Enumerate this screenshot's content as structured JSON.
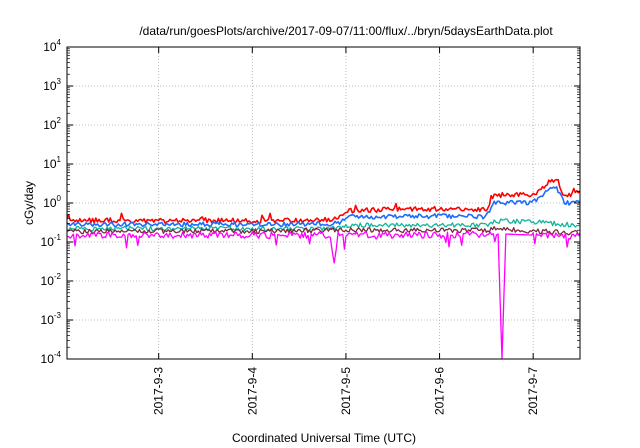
{
  "chart_data": {
    "type": "line",
    "title": "/data/run/goesPlots/archive/2017-09-07/11:00/flux/../bryn/5daysEarthData.plot",
    "xlabel": "Coordinated Universal Time (UTC)",
    "ylabel": "cGy/day",
    "y_scale": "log",
    "ylim": [
      0.0001,
      10000
    ],
    "xlim": [
      "2017-09-02 00:30",
      "2017-09-07 12:00"
    ],
    "x_ticks": [
      "2017-9-3",
      "2017-9-4",
      "2017-9-5",
      "2017-9-6",
      "2017-9-7"
    ],
    "x_tick_dates": [
      "2017-09-03",
      "2017-09-04",
      "2017-09-05",
      "2017-09-06",
      "2017-09-07"
    ],
    "y_ticks": [
      {
        "base": "10",
        "exp": "-4",
        "value": 0.0001
      },
      {
        "base": "10",
        "exp": "-3",
        "value": 0.001
      },
      {
        "base": "10",
        "exp": "-2",
        "value": 0.01
      },
      {
        "base": "10",
        "exp": "-1",
        "value": 0.1
      },
      {
        "base": "10",
        "exp": "0",
        "value": 1
      },
      {
        "base": "10",
        "exp": "1",
        "value": 10
      },
      {
        "base": "10",
        "exp": "2",
        "value": 100
      },
      {
        "base": "10",
        "exp": "3",
        "value": 1000
      },
      {
        "base": "10",
        "exp": "4",
        "value": 10000
      }
    ],
    "grid": true,
    "series": [
      {
        "color": "#ff0000",
        "x": [
          "2017-09-02 00:30",
          "2017-09-02 12:00",
          "2017-09-03 00:00",
          "2017-09-03 12:00",
          "2017-09-04 00:00",
          "2017-09-04 12:00",
          "2017-09-04 22:00",
          "2017-09-05 00:00",
          "2017-09-05 12:00",
          "2017-09-06 00:00",
          "2017-09-06 12:00",
          "2017-09-06 14:00",
          "2017-09-07 00:00",
          "2017-09-07 04:00",
          "2017-09-07 06:00",
          "2017-09-07 08:00",
          "2017-09-07 12:00"
        ],
        "values": [
          0.35,
          0.36,
          0.35,
          0.36,
          0.35,
          0.36,
          0.38,
          0.62,
          0.7,
          0.7,
          0.68,
          1.6,
          1.6,
          3.5,
          3.8,
          1.5,
          2.0
        ]
      },
      {
        "color": "#1e6cff",
        "x": [
          "2017-09-02 00:30",
          "2017-09-03 00:00",
          "2017-09-04 00:00",
          "2017-09-04 22:00",
          "2017-09-05 00:00",
          "2017-09-06 00:00",
          "2017-09-06 12:00",
          "2017-09-06 14:00",
          "2017-09-07 00:00",
          "2017-09-07 04:00",
          "2017-09-07 06:00",
          "2017-09-07 08:00",
          "2017-09-07 12:00"
        ],
        "values": [
          0.28,
          0.28,
          0.28,
          0.3,
          0.45,
          0.46,
          0.45,
          1.0,
          1.05,
          2.2,
          2.4,
          1.0,
          1.0
        ]
      },
      {
        "color": "#10b59a",
        "x": [
          "2017-09-02 00:30",
          "2017-09-03 00:00",
          "2017-09-04 00:00",
          "2017-09-04 22:00",
          "2017-09-05 00:00",
          "2017-09-06 00:00",
          "2017-09-06 12:00",
          "2017-09-06 14:00",
          "2017-09-07 00:00",
          "2017-09-07 12:00"
        ],
        "values": [
          0.22,
          0.22,
          0.22,
          0.22,
          0.27,
          0.27,
          0.27,
          0.35,
          0.33,
          0.26
        ]
      },
      {
        "color": "#7a2a3a",
        "x": [
          "2017-09-02 00:30",
          "2017-09-03 00:00",
          "2017-09-04 00:00",
          "2017-09-05 00:00",
          "2017-09-06 00:00",
          "2017-09-06 12:00",
          "2017-09-06 14:00",
          "2017-09-07 00:00",
          "2017-09-07 12:00"
        ],
        "values": [
          0.19,
          0.19,
          0.19,
          0.2,
          0.2,
          0.2,
          0.22,
          0.19,
          0.17
        ]
      },
      {
        "color": "#ff00ff",
        "x": [
          "2017-09-02 00:30",
          "2017-09-03 00:00",
          "2017-09-04 00:00",
          "2017-09-04 20:00",
          "2017-09-04 21:00",
          "2017-09-04 22:00",
          "2017-09-05 00:00",
          "2017-09-06 00:00",
          "2017-09-06 15:00",
          "2017-09-06 16:00",
          "2017-09-06 17:00",
          "2017-09-07 00:00",
          "2017-09-07 12:00"
        ],
        "values": [
          0.15,
          0.15,
          0.15,
          0.15,
          0.03,
          0.15,
          0.15,
          0.15,
          0.16,
          0.0001,
          0.16,
          0.15,
          0.14
        ]
      }
    ]
  }
}
